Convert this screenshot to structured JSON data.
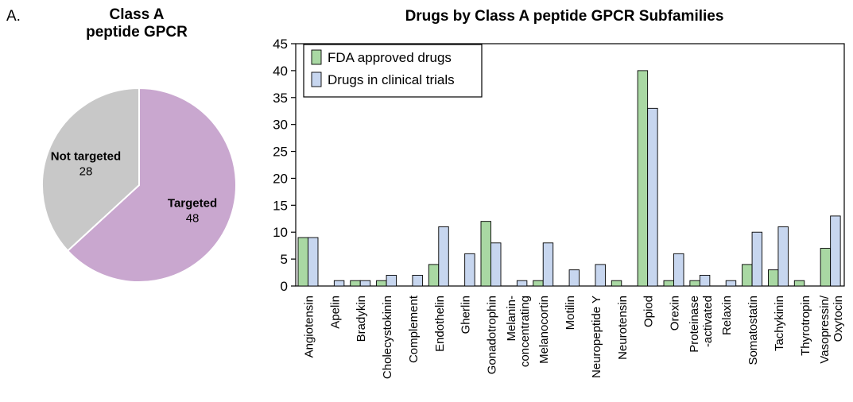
{
  "panel_label": "A.",
  "chart_data": [
    {
      "type": "pie",
      "title_line1": "Class A",
      "title_line2": "peptide GPCR",
      "slices": [
        {
          "label": "Targeted",
          "value": 48,
          "color": "#c9a7cf"
        },
        {
          "label": "Not targeted",
          "value": 28,
          "color": "#c8c8c8"
        }
      ]
    },
    {
      "type": "bar",
      "title": "Drugs by Class A peptide GPCR Subfamilies",
      "ylim": [
        0,
        45
      ],
      "yticks": [
        0,
        5,
        10,
        15,
        20,
        25,
        30,
        35,
        40,
        45
      ],
      "legend_placement": "top-left",
      "categories": [
        [
          "Angiotensin"
        ],
        [
          "Apelin"
        ],
        [
          "Bradykin"
        ],
        [
          "Cholecystokinin"
        ],
        [
          "Complement"
        ],
        [
          "Endothelin"
        ],
        [
          "Gherlin"
        ],
        [
          "Gonadotrophin"
        ],
        [
          "Melanin-",
          "concentrating"
        ],
        [
          "Melanocortin"
        ],
        [
          "Motilin"
        ],
        [
          "Neuropeptide Y"
        ],
        [
          "Neurotensin"
        ],
        [
          "Opiod"
        ],
        [
          "Orexin"
        ],
        [
          "Proteinase",
          "-activated"
        ],
        [
          "Relaxin"
        ],
        [
          "Somatostatin"
        ],
        [
          "Tachykinin"
        ],
        [
          "Thyrotropin"
        ],
        [
          "Vasopressin/",
          "Oxytocin"
        ]
      ],
      "series": [
        {
          "name": "FDA approved drugs",
          "color": "#a9d8a3",
          "values": [
            9,
            0,
            1,
            1,
            0,
            4,
            0,
            12,
            0,
            1,
            0,
            0,
            1,
            40,
            1,
            1,
            0,
            4,
            3,
            1,
            7
          ]
        },
        {
          "name": "Drugs in clinical trials",
          "color": "#c7d6ef",
          "values": [
            9,
            1,
            1,
            2,
            2,
            11,
            6,
            8,
            1,
            8,
            3,
            4,
            0,
            33,
            6,
            2,
            1,
            10,
            11,
            0,
            13
          ]
        }
      ]
    }
  ]
}
